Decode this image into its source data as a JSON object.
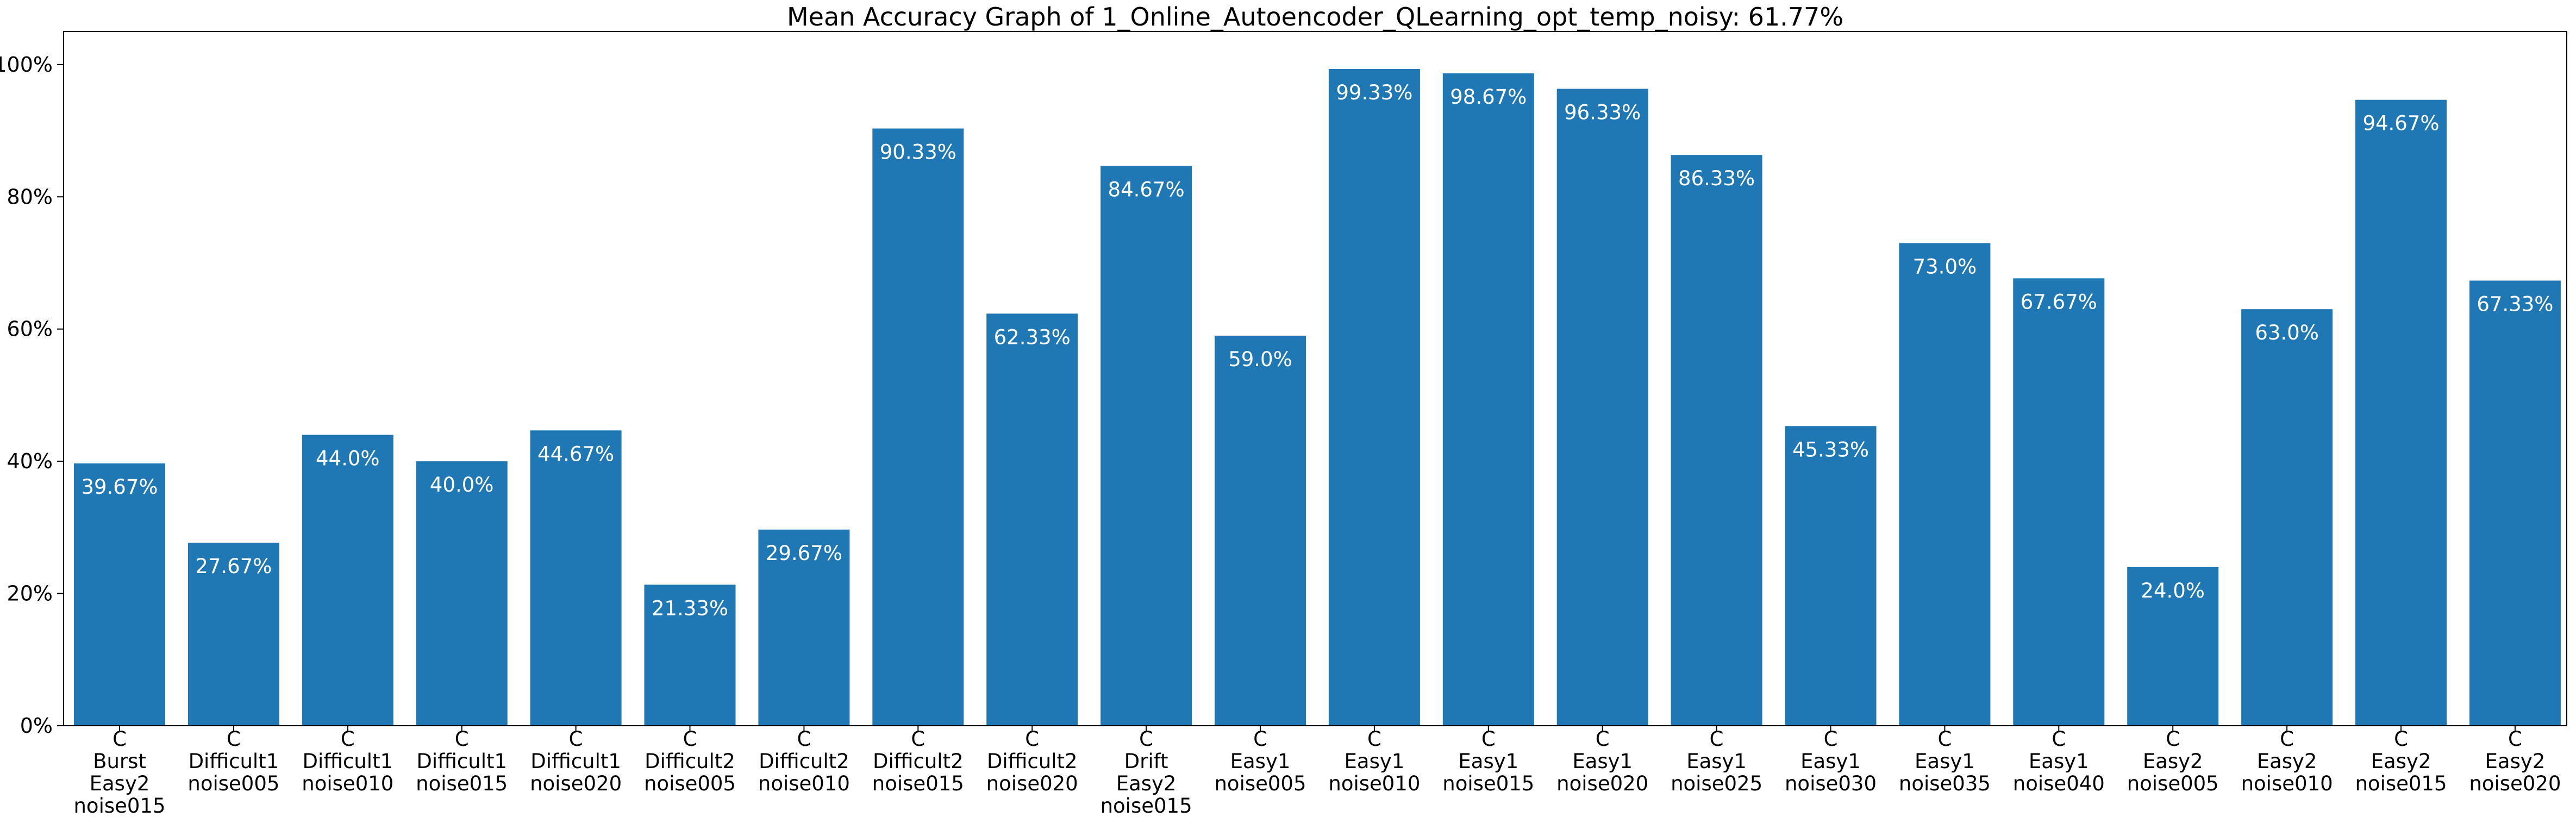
{
  "chart_data": {
    "type": "bar",
    "title": "Mean Accuracy Graph of 1_Online_Autoencoder_QLearning_opt_temp_noisy: 61.77%",
    "xlabel": "",
    "ylabel": "",
    "ylim": [
      0,
      105
    ],
    "y_ticks": [
      {
        "value": 0,
        "label": "0%"
      },
      {
        "value": 20,
        "label": "20%"
      },
      {
        "value": 40,
        "label": "40%"
      },
      {
        "value": 60,
        "label": "60%"
      },
      {
        "value": 80,
        "label": "80%"
      },
      {
        "value": 100,
        "label": "100%"
      }
    ],
    "grid": false,
    "bar_color": "#1f77b4",
    "label_color": "#ffffff",
    "categories": [
      [
        "C",
        "Burst",
        "Easy2",
        "noise015"
      ],
      [
        "C",
        "Difficult1",
        "noise005"
      ],
      [
        "C",
        "Difficult1",
        "noise010"
      ],
      [
        "C",
        "Difficult1",
        "noise015"
      ],
      [
        "C",
        "Difficult1",
        "noise020"
      ],
      [
        "C",
        "Difficult2",
        "noise005"
      ],
      [
        "C",
        "Difficult2",
        "noise010"
      ],
      [
        "C",
        "Difficult2",
        "noise015"
      ],
      [
        "C",
        "Difficult2",
        "noise020"
      ],
      [
        "C",
        "Drift",
        "Easy2",
        "noise015"
      ],
      [
        "C",
        "Easy1",
        "noise005"
      ],
      [
        "C",
        "Easy1",
        "noise010"
      ],
      [
        "C",
        "Easy1",
        "noise015"
      ],
      [
        "C",
        "Easy1",
        "noise020"
      ],
      [
        "C",
        "Easy1",
        "noise025"
      ],
      [
        "C",
        "Easy1",
        "noise030"
      ],
      [
        "C",
        "Easy1",
        "noise035"
      ],
      [
        "C",
        "Easy1",
        "noise040"
      ],
      [
        "C",
        "Easy2",
        "noise005"
      ],
      [
        "C",
        "Easy2",
        "noise010"
      ],
      [
        "C",
        "Easy2",
        "noise015"
      ],
      [
        "C",
        "Easy2",
        "noise020"
      ]
    ],
    "values": [
      39.67,
      27.67,
      44.0,
      40.0,
      44.67,
      21.33,
      29.67,
      90.33,
      62.33,
      84.67,
      59.0,
      99.33,
      98.67,
      96.33,
      86.33,
      45.33,
      73.0,
      67.67,
      24.0,
      63.0,
      94.67,
      67.33
    ],
    "value_labels": [
      "39.67%",
      "27.67%",
      "44.0%",
      "40.0%",
      "44.67%",
      "21.33%",
      "29.67%",
      "90.33%",
      "62.33%",
      "84.67%",
      "59.0%",
      "99.33%",
      "98.67%",
      "96.33%",
      "86.33%",
      "45.33%",
      "73.0%",
      "67.67%",
      "24.0%",
      "63.0%",
      "94.67%",
      "67.33%"
    ]
  }
}
